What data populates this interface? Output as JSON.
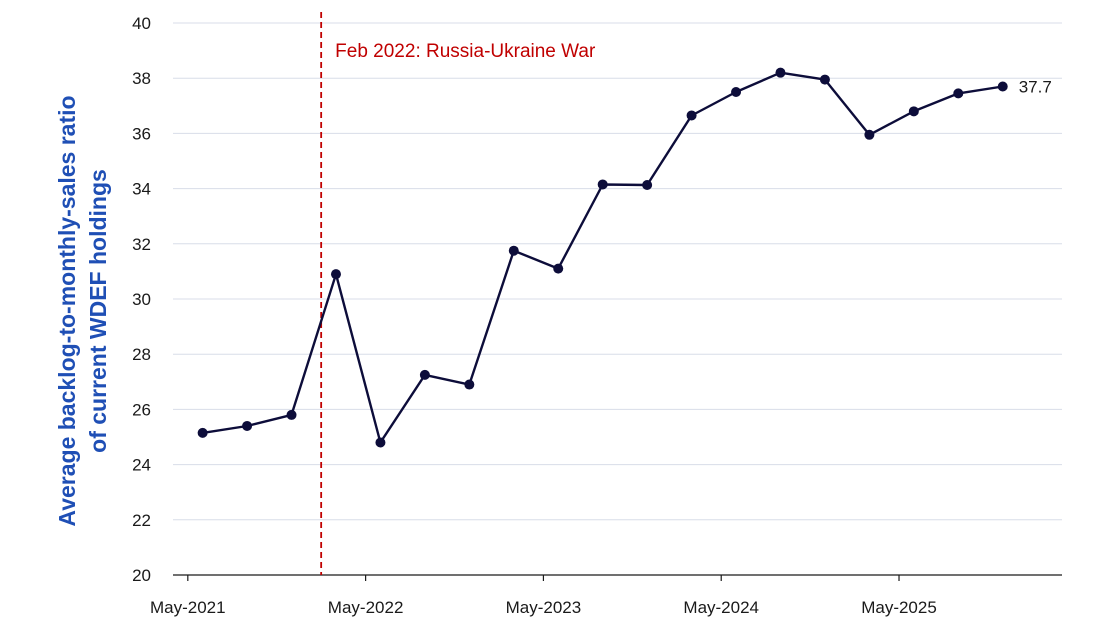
{
  "chart_data": {
    "type": "line",
    "title": "",
    "ylabel_line1": "Average backlog-to-monthly-sales ratio",
    "ylabel_line2": "of current WDEF holdings",
    "xlabel": "",
    "ylim": [
      20,
      40
    ],
    "yticks": [
      20,
      22,
      24,
      26,
      28,
      30,
      32,
      34,
      36,
      38,
      40
    ],
    "xlim": [
      "2021-04",
      "2026-04"
    ],
    "xticks": [
      {
        "date": "2021-05",
        "label": "May-2021"
      },
      {
        "date": "2022-05",
        "label": "May-2022"
      },
      {
        "date": "2023-05",
        "label": "May-2023"
      },
      {
        "date": "2024-05",
        "label": "May-2024"
      },
      {
        "date": "2025-05",
        "label": "May-2025"
      }
    ],
    "grid": "horizontal",
    "series": [
      {
        "color": "#0d0d3a",
        "points": [
          {
            "x": "2021-06",
            "y": 25.15
          },
          {
            "x": "2021-09",
            "y": 25.4
          },
          {
            "x": "2021-12",
            "y": 25.8
          },
          {
            "x": "2022-03",
            "y": 30.9
          },
          {
            "x": "2022-06",
            "y": 24.8
          },
          {
            "x": "2022-09",
            "y": 27.25
          },
          {
            "x": "2022-12",
            "y": 26.9
          },
          {
            "x": "2023-03",
            "y": 31.75
          },
          {
            "x": "2023-06",
            "y": 31.1
          },
          {
            "x": "2023-09",
            "y": 34.15
          },
          {
            "x": "2023-12",
            "y": 34.13
          },
          {
            "x": "2024-03",
            "y": 36.65
          },
          {
            "x": "2024-06",
            "y": 37.5
          },
          {
            "x": "2024-09",
            "y": 38.2
          },
          {
            "x": "2024-12",
            "y": 37.95
          },
          {
            "x": "2025-03",
            "y": 35.95
          },
          {
            "x": "2025-06",
            "y": 36.8
          },
          {
            "x": "2025-09",
            "y": 37.45
          },
          {
            "x": "2025-12",
            "y": 37.7
          }
        ],
        "end_label": "37.7"
      }
    ],
    "annotations": [
      {
        "type": "vline",
        "x": "2022-02",
        "label": "Feb 2022: Russia-Ukraine War",
        "color": "#c00000",
        "style": "dashed"
      }
    ],
    "colors": {
      "ylabel": "#1f4fb5",
      "grid": "#d8dde8",
      "axis": "#1a1a1a"
    }
  }
}
